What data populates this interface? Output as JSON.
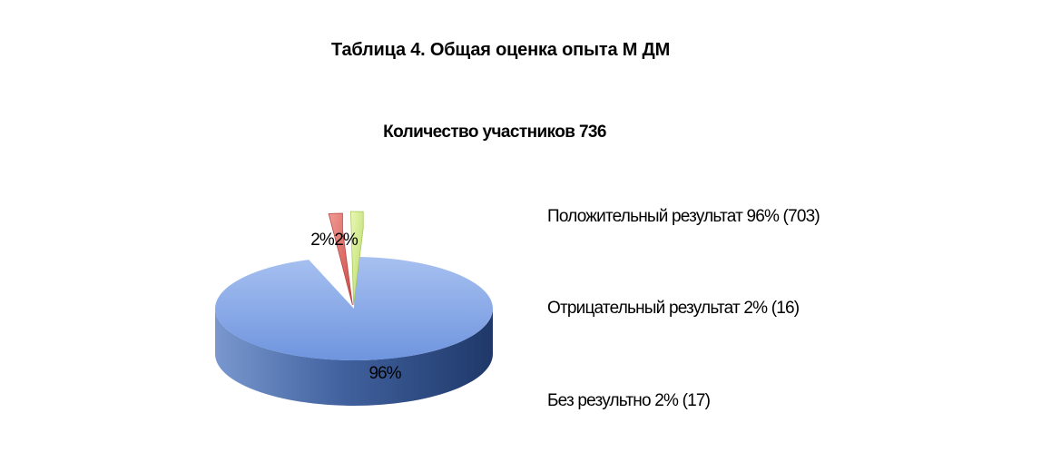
{
  "title": "Таблица 4. Общая оценка опыта М ДМ",
  "chart_data": {
    "type": "pie",
    "subtitle": "Количество участников 736",
    "slices": [
      {
        "label": "Положительный результат 96% (703)",
        "value": 96,
        "count": 703,
        "data_label": "96%",
        "color": "#5b84d6"
      },
      {
        "label": "Отрицательный результат 2% (16)",
        "value": 2,
        "count": 16,
        "data_label": "2%",
        "color": "#dc5a55"
      },
      {
        "label": "Без результно 2% (17)",
        "value": 2,
        "count": 17,
        "data_label": "2%",
        "color": "#c4e17a"
      }
    ],
    "legend_position": "right",
    "three_d": true
  }
}
